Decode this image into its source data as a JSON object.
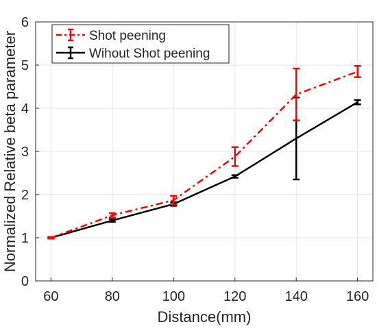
{
  "chart_data": {
    "type": "line",
    "xlabel": "Distance(mm)",
    "ylabel": "Normalized Relative beta parameter",
    "x": [
      60,
      80,
      100,
      120,
      140,
      160
    ],
    "xlim": [
      55,
      165
    ],
    "ylim": [
      0,
      6
    ],
    "xticks": [
      "60",
      "80",
      "100",
      "120",
      "140",
      "160"
    ],
    "yticks": [
      "0",
      "1",
      "2",
      "3",
      "4",
      "5",
      "6"
    ],
    "grid": true,
    "legend_position": "top-left",
    "series": [
      {
        "name": "Shot peening",
        "color": "#ff0000",
        "line_style": "dash-dot",
        "values": [
          1.0,
          1.52,
          1.87,
          2.88,
          4.32,
          4.85
        ],
        "error": [
          0.02,
          0.05,
          0.1,
          0.22,
          0.6,
          0.13
        ]
      },
      {
        "name": "Wihout Shot peening",
        "color": "#000000",
        "line_style": "solid",
        "values": [
          1.0,
          1.4,
          1.78,
          2.42,
          3.3,
          4.14
        ],
        "error": [
          0.02,
          0.03,
          0.04,
          0.03,
          0.95,
          0.05
        ]
      }
    ]
  }
}
